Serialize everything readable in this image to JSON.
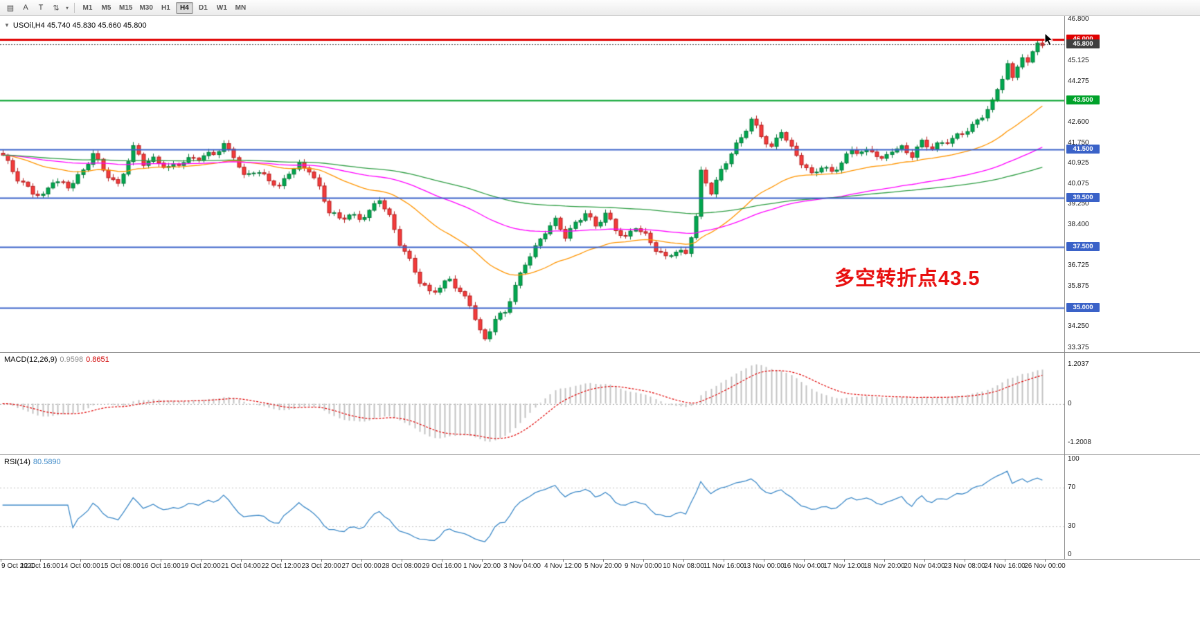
{
  "toolbar": {
    "icons": [
      {
        "name": "chart-grid",
        "glyph": "▤"
      },
      {
        "name": "text-label",
        "glyph": "A"
      },
      {
        "name": "text-tool",
        "glyph": "T"
      },
      {
        "name": "arrows-tool",
        "glyph": "⇅"
      },
      {
        "name": "dropdown-caret",
        "glyph": "▾"
      }
    ],
    "timeframes": [
      {
        "label": "M1"
      },
      {
        "label": "M5"
      },
      {
        "label": "M15"
      },
      {
        "label": "M30"
      },
      {
        "label": "H1"
      },
      {
        "label": "H4",
        "selected": true
      },
      {
        "label": "D1"
      },
      {
        "label": "W1"
      },
      {
        "label": "MN"
      }
    ]
  },
  "quote": {
    "expander": "▼",
    "symbol_line": "USOil,H4 45.740 45.830 45.660 45.800"
  },
  "annotation": {
    "text": "多空转折点43.5",
    "color": "#e81010"
  },
  "chart_data": {
    "type": "candlestick",
    "symbol": "USOil",
    "timeframe": "H4",
    "quote_ohlc": {
      "open": 45.74,
      "high": 45.83,
      "low": 45.66,
      "close": 45.8
    },
    "bars": 208,
    "y_axis": {
      "max": 46.95,
      "min": 33.2,
      "ticks": [
        46.8,
        45.125,
        44.275,
        42.6,
        41.75,
        40.925,
        40.075,
        39.25,
        38.4,
        36.725,
        35.875,
        34.25,
        33.375
      ]
    },
    "levels": [
      {
        "price": 46.0,
        "color": "#e00000",
        "width": 3,
        "style": "solid",
        "badge": "#e00000"
      },
      {
        "price": 45.8,
        "color": "#444444",
        "width": 1,
        "style": "dot",
        "badge": "#3f3f3f"
      },
      {
        "price": 43.5,
        "color": "#00a22a",
        "width": 2,
        "style": "solid",
        "badge": "#00a22a"
      },
      {
        "price": 41.5,
        "color": "#3a62c8",
        "width": 2,
        "style": "solid",
        "badge": "#3a62c8"
      },
      {
        "price": 39.5,
        "color": "#3a62c8",
        "width": 2,
        "style": "solid",
        "badge": "#3a62c8"
      },
      {
        "price": 37.5,
        "color": "#3a62c8",
        "width": 2,
        "style": "solid",
        "badge": "#3a62c8"
      },
      {
        "price": 35.0,
        "color": "#3a62c8",
        "width": 2,
        "style": "solid",
        "badge": "#3a62c8"
      }
    ],
    "price_path": [
      [
        0,
        41.2
      ],
      [
        3,
        40.3
      ],
      [
        6,
        39.8
      ],
      [
        8,
        39.6
      ],
      [
        10,
        40.2
      ],
      [
        13,
        39.9
      ],
      [
        16,
        40.6
      ],
      [
        18,
        41.4
      ],
      [
        20,
        40.7
      ],
      [
        23,
        40.0
      ],
      [
        25,
        41.0
      ],
      [
        26,
        41.5
      ],
      [
        28,
        40.9
      ],
      [
        30,
        41.1
      ],
      [
        33,
        40.8
      ],
      [
        36,
        41.0
      ],
      [
        39,
        41.1
      ],
      [
        42,
        41.3
      ],
      [
        44,
        41.7
      ],
      [
        46,
        41.3
      ],
      [
        48,
        40.4
      ],
      [
        50,
        40.6
      ],
      [
        53,
        40.2
      ],
      [
        55,
        39.9
      ],
      [
        57,
        40.6
      ],
      [
        59,
        40.9
      ],
      [
        61,
        40.7
      ],
      [
        63,
        39.9
      ],
      [
        65,
        38.9
      ],
      [
        67,
        38.6
      ],
      [
        69,
        38.8
      ],
      [
        71,
        38.7
      ],
      [
        73,
        39.0
      ],
      [
        75,
        39.5
      ],
      [
        77,
        38.7
      ],
      [
        79,
        37.6
      ],
      [
        81,
        36.9
      ],
      [
        83,
        36.1
      ],
      [
        85,
        35.7
      ],
      [
        87,
        35.9
      ],
      [
        89,
        36.2
      ],
      [
        91,
        35.6
      ],
      [
        93,
        35.1
      ],
      [
        95,
        34.0
      ],
      [
        96,
        33.7
      ],
      [
        98,
        34.6
      ],
      [
        100,
        34.9
      ],
      [
        102,
        35.9
      ],
      [
        104,
        36.8
      ],
      [
        106,
        37.4
      ],
      [
        108,
        38.1
      ],
      [
        110,
        38.6
      ],
      [
        112,
        38.0
      ],
      [
        114,
        38.5
      ],
      [
        116,
        38.9
      ],
      [
        118,
        38.3
      ],
      [
        120,
        38.8
      ],
      [
        122,
        38.2
      ],
      [
        124,
        37.9
      ],
      [
        126,
        38.4
      ],
      [
        128,
        38.0
      ],
      [
        130,
        37.4
      ],
      [
        132,
        37.0
      ],
      [
        134,
        37.3
      ],
      [
        136,
        37.2
      ],
      [
        138,
        38.8
      ],
      [
        139,
        40.6
      ],
      [
        141,
        39.8
      ],
      [
        143,
        40.6
      ],
      [
        145,
        41.3
      ],
      [
        147,
        41.9
      ],
      [
        149,
        42.7
      ],
      [
        151,
        42.1
      ],
      [
        153,
        41.6
      ],
      [
        155,
        42.3
      ],
      [
        157,
        41.5
      ],
      [
        159,
        40.9
      ],
      [
        161,
        40.4
      ],
      [
        163,
        40.8
      ],
      [
        165,
        40.6
      ],
      [
        167,
        41.0
      ],
      [
        169,
        41.5
      ],
      [
        171,
        41.3
      ],
      [
        173,
        41.4
      ],
      [
        175,
        41.0
      ],
      [
        177,
        41.5
      ],
      [
        179,
        41.6
      ],
      [
        181,
        41.3
      ],
      [
        183,
        41.8
      ],
      [
        185,
        41.5
      ],
      [
        187,
        41.7
      ],
      [
        189,
        41.9
      ],
      [
        191,
        42.2
      ],
      [
        193,
        42.5
      ],
      [
        195,
        42.9
      ],
      [
        197,
        43.4
      ],
      [
        199,
        44.4
      ],
      [
        200,
        44.9
      ],
      [
        201,
        44.3
      ],
      [
        202,
        44.9
      ],
      [
        203,
        45.3
      ],
      [
        204,
        45.0
      ],
      [
        205,
        45.5
      ],
      [
        206,
        46.0
      ],
      [
        207,
        45.8
      ]
    ],
    "moving_averages": [
      {
        "name": "ma-fast",
        "period": 34,
        "color": "#ff9500"
      },
      {
        "name": "ma-mid",
        "period": 89,
        "color": "#ff00ff"
      },
      {
        "name": "ma-slow",
        "period": 170,
        "color": "#2f9e44"
      }
    ],
    "macd": {
      "name": "MACD(12,26,9)",
      "main_str": "0.9598",
      "signal_str": "0.8651",
      "params": [
        12,
        26,
        9
      ],
      "ticks": [
        {
          "v": 1.2037,
          "t": "1.2037"
        },
        {
          "v": 0,
          "t": "0"
        },
        {
          "v": -1.2008,
          "t": "-1.2008"
        }
      ],
      "hist_color": "#c3c3c3",
      "signal_color": "#e00000"
    },
    "rsi": {
      "name": "RSI(14)",
      "value_str": "80.5890",
      "period": 14,
      "levels": [
        70,
        30
      ],
      "ticks": [
        {
          "v": 100,
          "t": "100"
        },
        {
          "v": 70,
          "t": "70"
        },
        {
          "v": 30,
          "t": "30"
        },
        {
          "v": 0,
          "t": "0"
        }
      ],
      "color": "#3e8ac8"
    },
    "time_labels": [
      "9 Oct 2020",
      "12 Oct 16:00",
      "14 Oct 00:00",
      "15 Oct 08:00",
      "16 Oct 16:00",
      "19 Oct 20:00",
      "21 Oct 04:00",
      "22 Oct 12:00",
      "23 Oct 20:00",
      "27 Oct 00:00",
      "28 Oct 08:00",
      "29 Oct 16:00",
      "1 Nov 20:00",
      "3 Nov 04:00",
      "4 Nov 12:00",
      "5 Nov 20:00",
      "9 Nov 00:00",
      "10 Nov 08:00",
      "11 Nov 16:00",
      "13 Nov 00:00",
      "16 Nov 04:00",
      "17 Nov 12:00",
      "18 Nov 20:00",
      "20 Nov 04:00",
      "23 Nov 08:00",
      "24 Nov 16:00",
      "26 Nov 00:00"
    ],
    "colors": {
      "up": "#00a84f",
      "up_border": "#067a3a",
      "down": "#f43b3b",
      "down_border": "#b51f1f"
    }
  }
}
